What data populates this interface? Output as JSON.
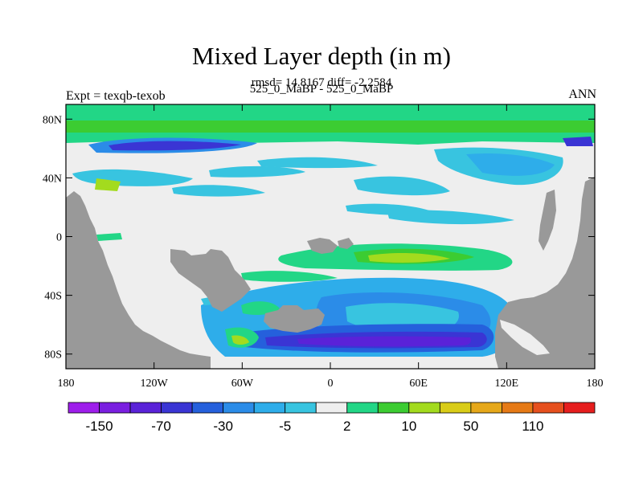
{
  "title": "Mixed Layer depth (in m)",
  "stats_line": "rmsd= 14.8167 diff= -2.2584",
  "case_line": "525_0_MaBP - 525_0_MaBP",
  "left_label": "Expt = texqb-texob",
  "right_label": "ANN",
  "map": {
    "projection": "cylindrical equidistant",
    "lon_range": [
      -180,
      180
    ],
    "lat_range": [
      -90,
      90
    ],
    "x_ticks": [
      {
        "lon": -180,
        "label": "180"
      },
      {
        "lon": -120,
        "label": "120W"
      },
      {
        "lon": -60,
        "label": "60W"
      },
      {
        "lon": 0,
        "label": "0"
      },
      {
        "lon": 60,
        "label": "60E"
      },
      {
        "lon": 120,
        "label": "120E"
      },
      {
        "lon": 180,
        "label": "180"
      }
    ],
    "y_ticks": [
      {
        "lat": 80,
        "label": "80N"
      },
      {
        "lat": 40,
        "label": "40N"
      },
      {
        "lat": 0,
        "label": "0"
      },
      {
        "lat": -40,
        "label": "40S"
      },
      {
        "lat": -80,
        "label": "80S"
      }
    ],
    "land_color": "#999999",
    "ocean_background_color": "#eeeeee"
  },
  "colorbar": {
    "colors": [
      "#9e1eeb",
      "#7a1fe0",
      "#5a22d8",
      "#3a35d4",
      "#2560dc",
      "#2b8ce8",
      "#2eadea",
      "#38c4e0",
      "#eeeeee",
      "#22d686",
      "#3ccc32",
      "#a3db1e",
      "#d9cc18",
      "#e6a81a",
      "#e67a16",
      "#e6501e",
      "#e61e1e"
    ],
    "labels": [
      "-150",
      "-70",
      "-30",
      "-5",
      "2",
      "10",
      "50",
      "110"
    ],
    "label_positions": [
      1,
      3,
      5,
      7,
      9,
      11,
      13,
      15
    ]
  }
}
